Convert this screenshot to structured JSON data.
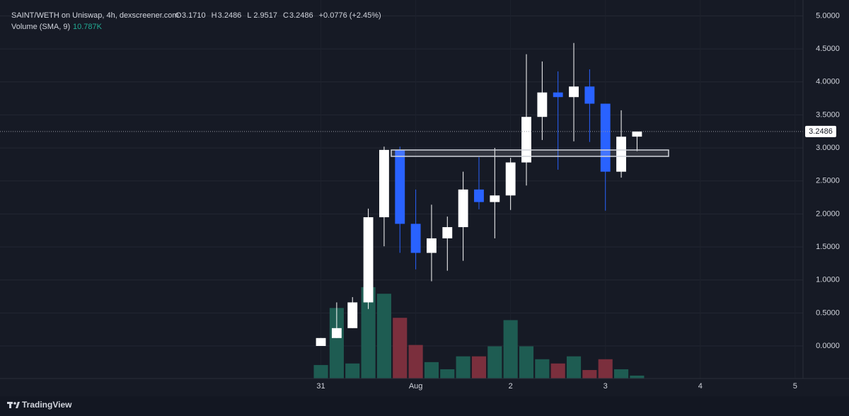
{
  "chart_data": {
    "type": "candlestick",
    "title": "SAINT/WETH on Uniswap, 4h, dexscreener.com",
    "ohlc_legend": [
      {
        "label": "O",
        "value": "3.1710"
      },
      {
        "label": "H",
        "value": "3.2486"
      },
      {
        "label": "L",
        "value": "2.9517"
      },
      {
        "label": "C",
        "value": "3.2486"
      }
    ],
    "change": "+0.0776 (+2.45%)",
    "volume_label": "Volume (SMA, 9)",
    "volume_sma": "10.787K",
    "categories": [
      null,
      null,
      null,
      null,
      null,
      null,
      null,
      null,
      null,
      null,
      null,
      null,
      null,
      null,
      null,
      null,
      null,
      null,
      null,
      null,
      null
    ],
    "open": [
      0.0,
      0.12,
      0.27,
      0.66,
      1.95,
      2.97,
      1.85,
      1.41,
      1.63,
      1.8,
      2.37,
      2.18,
      2.28,
      2.78,
      3.47,
      3.84,
      3.77,
      3.93,
      3.67,
      2.64,
      3.171
    ],
    "high": [
      0.12,
      0.66,
      0.74,
      2.08,
      3.02,
      3.02,
      2.37,
      2.14,
      1.96,
      2.64,
      2.86,
      3.0,
      2.85,
      4.42,
      4.31,
      4.16,
      4.59,
      4.19,
      3.67,
      3.57,
      3.2486
    ],
    "low": [
      0.0,
      0.12,
      0.27,
      0.56,
      1.51,
      1.41,
      1.16,
      0.98,
      1.14,
      1.29,
      2.07,
      1.63,
      2.06,
      2.43,
      3.12,
      2.67,
      3.1,
      3.09,
      2.05,
      2.55,
      2.9517
    ],
    "close": [
      0.12,
      0.27,
      0.66,
      1.95,
      2.97,
      1.85,
      1.41,
      1.63,
      1.8,
      2.37,
      2.18,
      2.28,
      2.78,
      3.47,
      3.84,
      3.77,
      3.93,
      3.67,
      2.64,
      3.17,
      3.2486
    ],
    "volume": [
      7.0,
      36.6,
      7.8,
      47.4,
      44.0,
      31.5,
      17.4,
      8.5,
      4.8,
      11.5,
      11.5,
      16.7,
      30.3,
      16.7,
      10.0,
      7.8,
      11.5,
      4.4,
      10.0,
      4.8,
      1.5
    ],
    "up_color": "#ffffff",
    "down_color": "#2962ff",
    "volume_up_color": "#1e5c52",
    "volume_down_color": "#7b2f3d",
    "xlim": [
      -20.3,
      30.5
    ],
    "xticks": [
      {
        "value": 0,
        "label": "31"
      },
      {
        "value": 6,
        "label": "Aug"
      },
      {
        "value": 12,
        "label": "2"
      },
      {
        "value": 18,
        "label": "3"
      },
      {
        "value": 24,
        "label": "4"
      },
      {
        "value": 30,
        "label": "5"
      }
    ],
    "ylim": [
      -0.493,
      5.155
    ],
    "yticks": [
      {
        "value": 0,
        "label": "0.0000"
      },
      {
        "value": 0.5,
        "label": "0.5000"
      },
      {
        "value": 1,
        "label": "1.0000"
      },
      {
        "value": 1.5,
        "label": "1.5000"
      },
      {
        "value": 2,
        "label": "2.0000"
      },
      {
        "value": 2.5,
        "label": "2.5000"
      },
      {
        "value": 3,
        "label": "3.0000"
      },
      {
        "value": 3.5,
        "label": "3.5000"
      },
      {
        "value": 4,
        "label": "4.0000"
      },
      {
        "value": 4.5,
        "label": "4.5000"
      },
      {
        "value": 5,
        "label": "5.0000"
      }
    ],
    "volume_lim": [
      0,
      193.5
    ],
    "grid": true,
    "brand": "TradingView"
  }
}
